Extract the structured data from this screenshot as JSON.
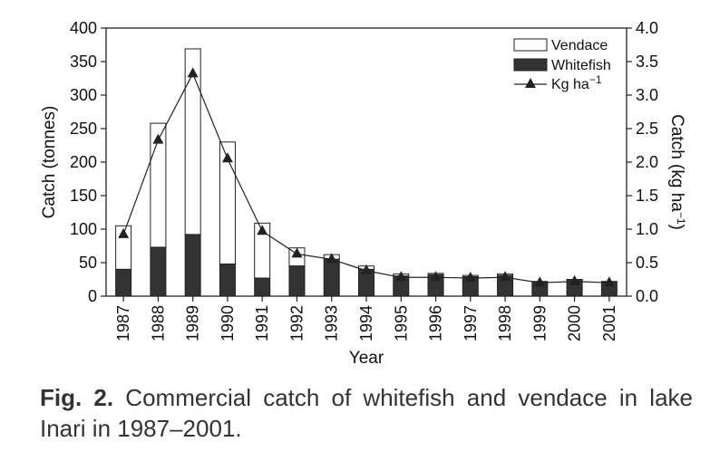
{
  "chart_data": {
    "type": "bar",
    "stacked": true,
    "categories": [
      "1987",
      "1988",
      "1989",
      "1990",
      "1991",
      "1992",
      "1993",
      "1994",
      "1995",
      "1996",
      "1997",
      "1998",
      "1999",
      "2000",
      "2001"
    ],
    "series": [
      {
        "name": "Whitefish",
        "type": "bar",
        "axis": "left",
        "color": "#333333",
        "values": [
          40,
          73,
          92,
          48,
          27,
          45,
          55,
          40,
          30,
          32,
          29,
          31,
          22,
          25,
          22
        ]
      },
      {
        "name": "Vendace",
        "type": "bar",
        "axis": "left",
        "color": "#ffffff",
        "values": [
          65,
          185,
          277,
          182,
          82,
          27,
          7,
          5,
          3,
          2,
          2,
          2,
          0,
          0,
          0
        ]
      },
      {
        "name": "Kg ha−1",
        "type": "line",
        "axis": "right",
        "marker": "triangle",
        "values": [
          0.92,
          2.33,
          3.32,
          2.05,
          0.97,
          0.63,
          0.55,
          0.38,
          0.28,
          0.28,
          0.27,
          0.28,
          0.2,
          0.22,
          0.2
        ]
      }
    ],
    "xlabel": "Year",
    "ylabel": "Catch (tonnes)",
    "ylabel_right": "Catch (kg ha−1)",
    "ylim": [
      0,
      400
    ],
    "ylim_right": [
      0,
      4.0
    ],
    "yticks": [
      "0",
      "50",
      "100",
      "150",
      "200",
      "250",
      "300",
      "350",
      "400"
    ],
    "yticks_right": [
      "0.0",
      "0.5",
      "1.0",
      "1.5",
      "2.0",
      "2.5",
      "3.0",
      "3.5",
      "4.0"
    ],
    "grid": false,
    "legend_position": "top-right"
  },
  "caption": {
    "label": "Fig. 2.",
    "text": " Commercial catch of whitefish and vendace in lake Inari in 1987–2001."
  }
}
